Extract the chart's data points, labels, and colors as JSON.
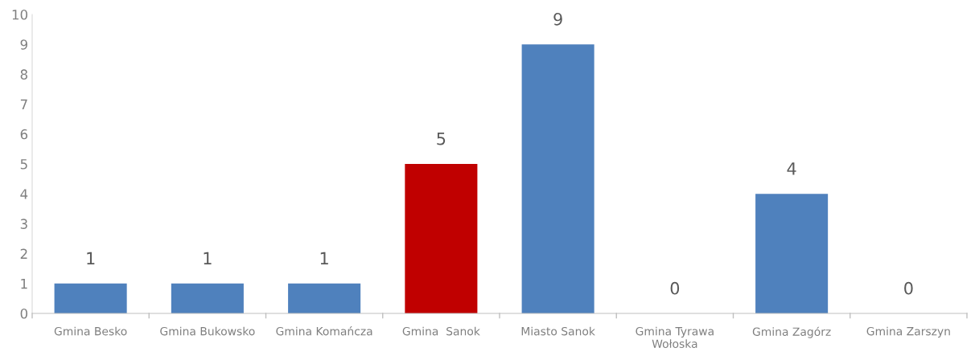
{
  "chart_data": {
    "type": "bar",
    "categories": [
      "Gmina Besko",
      "Gmina Bukowsko",
      "Gmina Komańcza",
      "Gmina  Sanok",
      "Miasto Sanok",
      "Gmina Tyrawa\nWołoska",
      "Gmina Zagórz",
      "Gmina Zarszyn"
    ],
    "values": [
      1,
      1,
      1,
      5,
      9,
      0,
      4,
      0
    ],
    "colors": [
      "#4f81bd",
      "#4f81bd",
      "#4f81bd",
      "#c00000",
      "#4f81bd",
      "#4f81bd",
      "#4f81bd",
      "#4f81bd"
    ],
    "ylim": [
      0,
      10
    ],
    "yticks": [
      0,
      1,
      2,
      3,
      4,
      5,
      6,
      7,
      8,
      9,
      10
    ],
    "data_labels": true,
    "grid": false,
    "legend": false
  }
}
